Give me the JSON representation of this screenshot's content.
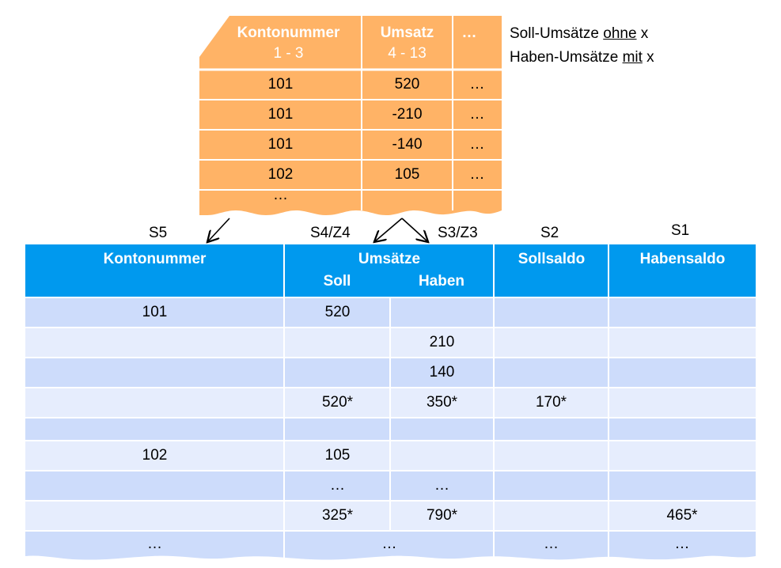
{
  "source_table": {
    "headers": [
      {
        "title": "Kontonummer",
        "sub": "1 - 3"
      },
      {
        "title": "Umsatz",
        "sub": "4 - 13"
      },
      {
        "title": "…",
        "sub": ""
      }
    ],
    "rows": [
      [
        "101",
        "520",
        "…"
      ],
      [
        "101",
        "-210",
        "…"
      ],
      [
        "101",
        "-140",
        "…"
      ],
      [
        "102",
        "105",
        "…"
      ],
      [
        "…",
        "",
        ""
      ]
    ],
    "fill_color": "#ffb366"
  },
  "note": {
    "line1_prefix": "Soll-Umsätze ",
    "line1_emph": "ohne",
    "line1_suffix": " x",
    "line2_prefix": "Haben-Umsätze ",
    "line2_emph": "mit",
    "line2_suffix": " x"
  },
  "column_labels": {
    "s5": "S5",
    "s4z4": "S4/Z4",
    "s3z3": "S3/Z3",
    "s2": "S2",
    "s1": "S1"
  },
  "result_table": {
    "headers": {
      "konto": "Kontonummer",
      "umsaetze": "Umsätze",
      "soll": "Soll",
      "haben": "Haben",
      "sollsaldo": "Sollsaldo",
      "habensaldo": "Habensaldo"
    },
    "rows": [
      [
        "101",
        "520",
        "",
        "",
        ""
      ],
      [
        "",
        "",
        "210",
        "",
        ""
      ],
      [
        "",
        "",
        "140",
        "",
        ""
      ],
      [
        "",
        "520*",
        "350*",
        "170*",
        ""
      ],
      [
        "",
        "",
        "",
        "",
        ""
      ],
      [
        "102",
        "105",
        "",
        "",
        ""
      ],
      [
        "",
        "…",
        "…",
        "",
        ""
      ],
      [
        "",
        "325*",
        "790*",
        "",
        "465*"
      ]
    ],
    "last_row": {
      "konto": "…",
      "umsaetze": "…",
      "sollsaldo": "…",
      "habensaldo": "…"
    },
    "header_color": "#0099ee",
    "row_colors": [
      "#cddcfb",
      "#e6edfd"
    ]
  }
}
